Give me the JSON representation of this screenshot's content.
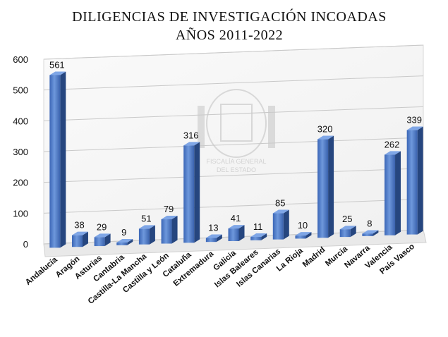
{
  "chart_data": {
    "type": "bar",
    "title": "DILIGENCIAS DE INVESTIGACIÓN INCOADAS",
    "subtitle": "AÑOS 2011-2022",
    "xlabel": "",
    "ylabel": "",
    "ylim": [
      0,
      600
    ],
    "yticks": [
      0,
      100,
      200,
      300,
      400,
      500,
      600
    ],
    "grid": true,
    "legend": "none",
    "bar_color": "#4a78c8",
    "watermark_text": [
      "FISCALÍA GENERAL",
      "DEL ESTADO"
    ],
    "categories": [
      "Andalucía",
      "Aragón",
      "Asturias",
      "Cantabria",
      "Castilla-La Mancha",
      "Castilla y León",
      "Cataluña",
      "Extremadura",
      "Galicia",
      "Islas Baleares",
      "Islas Canarias",
      "La Rioja",
      "Madrid",
      "Murcia",
      "Navarra",
      "Valencia",
      "País Vasco"
    ],
    "values": [
      561,
      38,
      29,
      9,
      51,
      79,
      316,
      13,
      41,
      11,
      85,
      10,
      320,
      25,
      8,
      262,
      339
    ]
  }
}
